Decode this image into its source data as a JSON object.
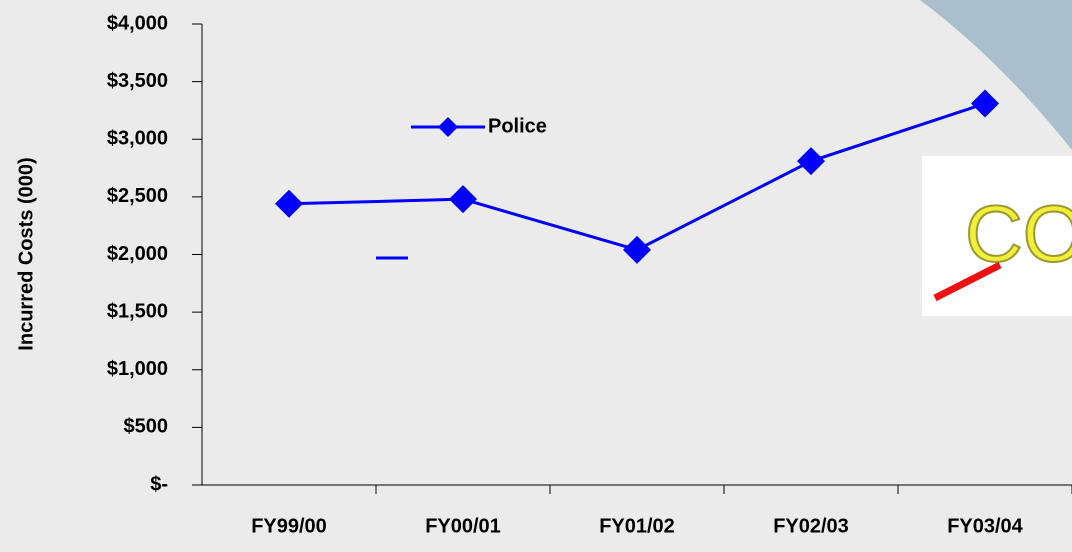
{
  "chart_data": {
    "type": "line",
    "y_label": "Incurred Costs (000)",
    "categories": [
      "FY99/00",
      "FY00/01",
      "FY01/02",
      "FY02/03",
      "FY03/04"
    ],
    "series": [
      {
        "name": "Police",
        "color": "#0000ff",
        "values": [
          2440,
          2480,
          2040,
          2810,
          3310
        ]
      }
    ],
    "ylim": [
      0,
      4000
    ],
    "yticks": [
      {
        "value": 0,
        "label": "$-"
      },
      {
        "value": 500,
        "label": "$500"
      },
      {
        "value": 1000,
        "label": "$1,000"
      },
      {
        "value": 1500,
        "label": "$1,500"
      },
      {
        "value": 2000,
        "label": "$2,000"
      },
      {
        "value": 2500,
        "label": "$2,500"
      },
      {
        "value": 3000,
        "label": "$3,000"
      },
      {
        "value": 3500,
        "label": "$3,500"
      },
      {
        "value": 4000,
        "label": "$4,000"
      }
    ]
  }
}
